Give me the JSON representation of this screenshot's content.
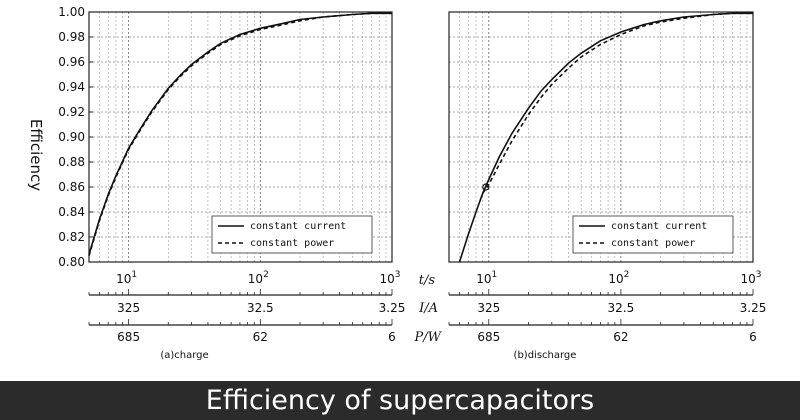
{
  "banner": {
    "text": "Efficiency of supercapacitors"
  },
  "y_axis_label": "Efficiency",
  "legend": {
    "current": "constant current",
    "power": "constant power"
  },
  "axis_names": {
    "t": "t/s",
    "i": "I/A",
    "p": "P/W"
  },
  "chart_data": [
    {
      "type": "line",
      "caption": "(a)charge",
      "x_scale": "log",
      "xlim": [
        5,
        1000
      ],
      "ylim": [
        0.8,
        1.0
      ],
      "y_ticks": [
        "1.00",
        "0.98",
        "0.96",
        "0.94",
        "0.92",
        "0.90",
        "0.88",
        "0.86",
        "0.84",
        "0.82",
        "0.80"
      ],
      "x_ticks": [
        {
          "base": "10",
          "exp": "1"
        },
        {
          "base": "10",
          "exp": "2"
        },
        {
          "base": "10",
          "exp": "3"
        }
      ],
      "current_ticks": [
        "325",
        "32.5",
        "3.25"
      ],
      "power_ticks": [
        "685",
        "62",
        "6"
      ],
      "grid": true,
      "legend_position": "bottom-right",
      "series": [
        {
          "name": "constant current",
          "style": "solid",
          "x": [
            5,
            6,
            7,
            8,
            10,
            12,
            15,
            20,
            25,
            30,
            40,
            50,
            70,
            100,
            150,
            200,
            300,
            500,
            700,
            1000
          ],
          "y": [
            0.806,
            0.834,
            0.854,
            0.869,
            0.891,
            0.905,
            0.921,
            0.939,
            0.95,
            0.958,
            0.968,
            0.975,
            0.982,
            0.987,
            0.991,
            0.994,
            0.996,
            0.998,
            0.999,
            0.999
          ]
        },
        {
          "name": "constant power",
          "style": "dashed",
          "x": [
            5,
            6,
            7,
            8,
            10,
            12,
            15,
            20,
            25,
            30,
            40,
            50,
            70,
            100,
            150,
            200,
            300,
            500,
            700,
            1000
          ],
          "y": [
            0.805,
            0.833,
            0.853,
            0.868,
            0.89,
            0.904,
            0.92,
            0.938,
            0.949,
            0.957,
            0.967,
            0.974,
            0.981,
            0.986,
            0.99,
            0.993,
            0.996,
            0.998,
            0.999,
            0.999
          ]
        }
      ]
    },
    {
      "type": "line",
      "caption": "(b)discharge",
      "x_scale": "log",
      "xlim": [
        5,
        1000
      ],
      "ylim": [
        0.8,
        1.0
      ],
      "y_ticks": [],
      "x_ticks": [
        {
          "base": "10",
          "exp": "1"
        },
        {
          "base": "10",
          "exp": "2"
        },
        {
          "base": "10",
          "exp": "3"
        }
      ],
      "current_ticks": [
        "325",
        "32.5",
        "3.25"
      ],
      "power_ticks": [
        "685",
        "62",
        "6"
      ],
      "grid": true,
      "legend_position": "bottom-right",
      "marker": {
        "x": 9.5,
        "y": 0.86
      },
      "series": [
        {
          "name": "constant current",
          "style": "solid",
          "x": [
            6,
            7,
            8,
            9,
            10,
            12,
            15,
            20,
            25,
            30,
            40,
            50,
            70,
            100,
            150,
            200,
            300,
            500,
            700,
            1000
          ],
          "y": [
            0.8,
            0.822,
            0.84,
            0.855,
            0.866,
            0.884,
            0.903,
            0.923,
            0.937,
            0.946,
            0.959,
            0.967,
            0.977,
            0.984,
            0.99,
            0.993,
            0.996,
            0.998,
            0.999,
            0.999
          ]
        },
        {
          "name": "constant power",
          "style": "dashed",
          "x": [
            9,
            10,
            12,
            15,
            20,
            25,
            30,
            40,
            50,
            70,
            100,
            150,
            200,
            300,
            500,
            700,
            1000
          ],
          "y": [
            0.855,
            0.862,
            0.878,
            0.897,
            0.918,
            0.932,
            0.942,
            0.955,
            0.964,
            0.974,
            0.982,
            0.989,
            0.992,
            0.995,
            0.998,
            0.999,
            0.999
          ]
        }
      ]
    }
  ]
}
